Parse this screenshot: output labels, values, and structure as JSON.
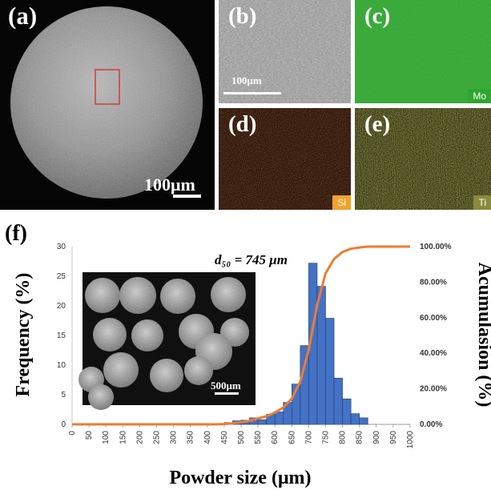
{
  "panels": {
    "a": {
      "label": "(a)",
      "scale": "100μm"
    },
    "b": {
      "label": "(b)",
      "scale": "100μm"
    },
    "c": {
      "label": "(c)",
      "element": "Mo",
      "tag_color": "#2fa62f"
    },
    "d": {
      "label": "(d)",
      "element": "Si",
      "tag_color": "#f2a22a"
    },
    "e": {
      "label": "(e)",
      "element": "Ti",
      "tag_color": "#8a8a3c"
    },
    "f": {
      "label": "(f)",
      "inset_scale": "500μm"
    }
  },
  "chart_data": {
    "type": "bar",
    "xlabel": "Powder size (μm)",
    "ylabel": "Frequency (%)",
    "y2label": "Acumulasion (%)",
    "annotation": "d₅₀ = 745 μm",
    "xlim": [
      0,
      1000
    ],
    "ylim": [
      0,
      30
    ],
    "y2lim": [
      0,
      100
    ],
    "xticks": [
      "0",
      "50",
      "100",
      "150",
      "200",
      "250",
      "300",
      "350",
      "400",
      "450",
      "500",
      "550",
      "600",
      "650",
      "700",
      "750",
      "800",
      "850",
      "900",
      "950",
      "1000"
    ],
    "yticks": [
      "0",
      "5",
      "10",
      "15",
      "20",
      "25",
      "30"
    ],
    "y2ticks": [
      "0.00%",
      "20.00%",
      "40.00%",
      "60.00%",
      "80.00%",
      "100.00%"
    ],
    "bin_width": 25,
    "bars": [
      {
        "x": 462.5,
        "y": 0.3
      },
      {
        "x": 487.5,
        "y": 0.6
      },
      {
        "x": 512.5,
        "y": 0.7
      },
      {
        "x": 537.5,
        "y": 1.1
      },
      {
        "x": 562.5,
        "y": 0.8
      },
      {
        "x": 587.5,
        "y": 1.7
      },
      {
        "x": 612.5,
        "y": 2.1
      },
      {
        "x": 637.5,
        "y": 3.7
      },
      {
        "x": 662.5,
        "y": 6.8
      },
      {
        "x": 687.5,
        "y": 13.3
      },
      {
        "x": 712.5,
        "y": 27.2
      },
      {
        "x": 737.5,
        "y": 23.3
      },
      {
        "x": 762.5,
        "y": 17.9
      },
      {
        "x": 787.5,
        "y": 7.8
      },
      {
        "x": 812.5,
        "y": 4.3
      },
      {
        "x": 837.5,
        "y": 1.8
      },
      {
        "x": 862.5,
        "y": 1.1
      }
    ],
    "cumulative": [
      [
        0,
        0
      ],
      [
        425,
        0
      ],
      [
        450,
        0.2
      ],
      [
        475,
        0.6
      ],
      [
        500,
        1.2
      ],
      [
        525,
        2.0
      ],
      [
        550,
        3.4
      ],
      [
        575,
        4.5
      ],
      [
        600,
        6.6
      ],
      [
        625,
        9.5
      ],
      [
        650,
        14.5
      ],
      [
        675,
        24.0
      ],
      [
        700,
        42.0
      ],
      [
        725,
        67.0
      ],
      [
        750,
        85.0
      ],
      [
        775,
        93.0
      ],
      [
        800,
        97.0
      ],
      [
        825,
        98.8
      ],
      [
        850,
        99.5
      ],
      [
        875,
        100
      ],
      [
        1000,
        100
      ]
    ],
    "bar_color": "#4472c4",
    "line_color": "#ed7d31"
  }
}
